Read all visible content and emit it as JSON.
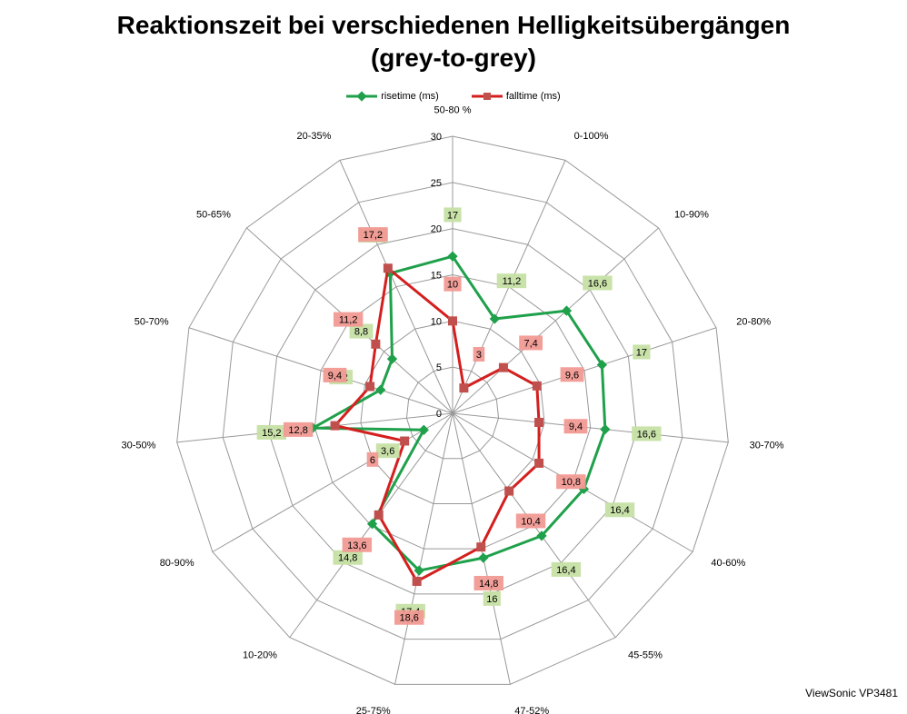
{
  "chart_data": {
    "type": "radar",
    "title": "Reaktionszeit bei verschiedenen Helligkeitsübergängen",
    "subtitle": "(grey-to-grey)",
    "categories": [
      "50-80 %",
      "0-100%",
      "10-90%",
      "20-80%",
      "30-70%",
      "40-60%",
      "45-55%",
      "47-52%",
      "25-75%",
      "10-20%",
      "80-90%",
      "30-50%",
      "50-70%",
      "50-65%",
      "20-35%"
    ],
    "rlim": [
      0,
      30
    ],
    "rticks": [
      0,
      5,
      10,
      15,
      20,
      25,
      30
    ],
    "series": [
      {
        "name": "risetime (ms)",
        "color": "#1fa04a",
        "label_bg": "#c6e0a4",
        "values": [
          17,
          11.2,
          16.6,
          17,
          16.6,
          16.4,
          16.4,
          16,
          17.4,
          14.8,
          3.6,
          15.2,
          8.2,
          8.8,
          16.6
        ],
        "labels": [
          "17",
          "11,2",
          "16,6",
          "17",
          "16,6",
          "16,4",
          "16,4",
          "16",
          "17,4",
          "14,8",
          "3,6",
          "15,2",
          "8,2",
          "8,8",
          "16,6"
        ]
      },
      {
        "name": "falltime (ms)",
        "color": "#d41f1f",
        "label_bg": "#f29a94",
        "values": [
          10,
          3,
          7.4,
          9.6,
          9.4,
          10.8,
          10.4,
          14.8,
          18.6,
          13.6,
          6,
          12.8,
          9.4,
          11.2,
          17.2
        ],
        "labels": [
          "10",
          "3",
          "7,4",
          "9,6",
          "9,4",
          "10,8",
          "10,4",
          "14,8",
          "18,6",
          "13,6",
          "6",
          "12,8",
          "9,4",
          "11,2",
          "17,2"
        ]
      }
    ],
    "legend_position": "top",
    "grid": true
  },
  "watermark": "ViewSonic VP3481"
}
